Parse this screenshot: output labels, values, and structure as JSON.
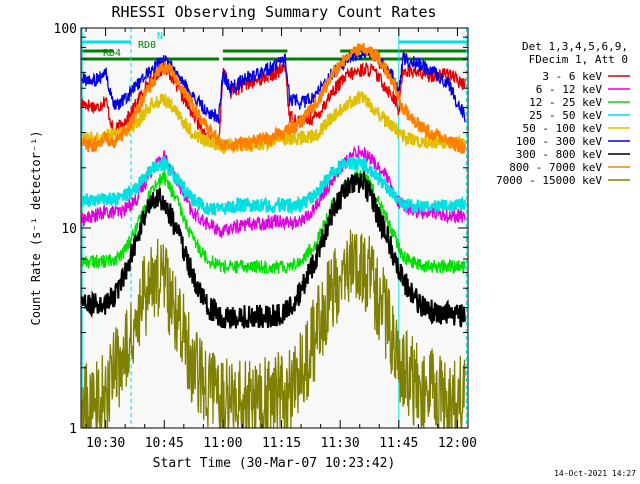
{
  "chart_data": {
    "type": "line",
    "title": "RHESSI Observing Summary Count Rates",
    "xlabel": "Start Time (30-Mar-07 10:23:42)",
    "ylabel": "Count Rate (s⁻¹ detector⁻¹)",
    "yscale": "log",
    "ylim": [
      1,
      100
    ],
    "xlim_minutes": [
      23.7,
      122.7
    ],
    "xticks": [
      {
        "min": 30,
        "label": "10:30"
      },
      {
        "min": 45,
        "label": "10:45"
      },
      {
        "min": 60,
        "label": "11:00"
      },
      {
        "min": 75,
        "label": "11:15"
      },
      {
        "min": 90,
        "label": "11:30"
      },
      {
        "min": 105,
        "label": "11:45"
      },
      {
        "min": 120,
        "label": "12:00"
      }
    ],
    "yticks": [
      {
        "value": 1,
        "label": "1"
      },
      {
        "value": 10,
        "label": "10"
      },
      {
        "value": 100,
        "label": "100"
      }
    ],
    "legend_position": "right",
    "legend_header": [
      "Det 1,3,4,5,6,9,",
      "FDecim 1, Att 0"
    ],
    "series": [
      {
        "name": "3 - 6 keV",
        "color": "#e00000",
        "points": [
          [
            24,
            42
          ],
          [
            28,
            40
          ],
          [
            30,
            44
          ],
          [
            32,
            30
          ],
          [
            36,
            36
          ],
          [
            40,
            50
          ],
          [
            44,
            62
          ],
          [
            46,
            62
          ],
          [
            48,
            52
          ],
          [
            52,
            38
          ],
          [
            56,
            28
          ],
          [
            59,
            26
          ],
          [
            60,
            62
          ],
          [
            62,
            48
          ],
          [
            66,
            52
          ],
          [
            70,
            56
          ],
          [
            74,
            60
          ],
          [
            76,
            64
          ],
          [
            77,
            36
          ],
          [
            80,
            34
          ],
          [
            84,
            36
          ],
          [
            88,
            48
          ],
          [
            92,
            58
          ],
          [
            96,
            62
          ],
          [
            98,
            62
          ],
          [
            100,
            56
          ],
          [
            104,
            44
          ],
          [
            105,
            38
          ],
          [
            106,
            62
          ],
          [
            110,
            60
          ],
          [
            112,
            58
          ],
          [
            116,
            58
          ],
          [
            118,
            60
          ],
          [
            120,
            54
          ],
          [
            122,
            52
          ]
        ]
      },
      {
        "name": "6 - 12 keV",
        "color": "#e000e0",
        "points": [
          [
            24,
            11
          ],
          [
            30,
            12
          ],
          [
            34,
            12
          ],
          [
            38,
            14
          ],
          [
            42,
            20
          ],
          [
            45,
            23
          ],
          [
            48,
            18
          ],
          [
            52,
            12
          ],
          [
            56,
            10.5
          ],
          [
            60,
            9.5
          ],
          [
            62,
            10
          ],
          [
            66,
            10.5
          ],
          [
            70,
            10.5
          ],
          [
            74,
            11
          ],
          [
            78,
            10.5
          ],
          [
            82,
            11.5
          ],
          [
            86,
            15
          ],
          [
            90,
            20
          ],
          [
            94,
            24
          ],
          [
            96,
            24
          ],
          [
            98,
            22
          ],
          [
            102,
            18
          ],
          [
            104,
            14
          ],
          [
            106,
            13
          ],
          [
            110,
            12
          ],
          [
            114,
            12
          ],
          [
            118,
            11.5
          ],
          [
            122,
            11.5
          ]
        ]
      },
      {
        "name": "12 - 25 keV",
        "color": "#00e000",
        "points": [
          [
            24,
            6.8
          ],
          [
            30,
            6.8
          ],
          [
            34,
            7.2
          ],
          [
            38,
            10
          ],
          [
            42,
            16
          ],
          [
            45,
            18
          ],
          [
            48,
            14
          ],
          [
            52,
            9
          ],
          [
            56,
            7
          ],
          [
            60,
            6.4
          ],
          [
            64,
            6.4
          ],
          [
            68,
            6.4
          ],
          [
            72,
            6.4
          ],
          [
            76,
            6.4
          ],
          [
            80,
            6.8
          ],
          [
            84,
            8.5
          ],
          [
            88,
            13
          ],
          [
            92,
            17
          ],
          [
            94,
            18
          ],
          [
            96,
            18
          ],
          [
            98,
            16
          ],
          [
            102,
            11
          ],
          [
            106,
            7.2
          ],
          [
            110,
            6.5
          ],
          [
            114,
            6.4
          ],
          [
            118,
            6.4
          ],
          [
            122,
            6.4
          ]
        ]
      },
      {
        "name": "25 - 50 keV",
        "color": "#00e0e0",
        "points": [
          [
            24,
            13.5
          ],
          [
            30,
            14
          ],
          [
            34,
            14
          ],
          [
            38,
            16
          ],
          [
            42,
            20
          ],
          [
            45,
            21
          ],
          [
            48,
            18
          ],
          [
            52,
            14
          ],
          [
            56,
            12.5
          ],
          [
            60,
            12.5
          ],
          [
            64,
            13
          ],
          [
            68,
            13
          ],
          [
            72,
            13
          ],
          [
            76,
            13
          ],
          [
            80,
            13
          ],
          [
            84,
            15
          ],
          [
            88,
            19
          ],
          [
            92,
            21
          ],
          [
            94,
            21
          ],
          [
            96,
            21
          ],
          [
            98,
            19
          ],
          [
            102,
            16
          ],
          [
            106,
            13
          ],
          [
            110,
            13
          ],
          [
            114,
            13
          ],
          [
            118,
            13
          ],
          [
            122,
            13
          ]
        ]
      },
      {
        "name": "50 - 100 keV",
        "color": "#e0c000",
        "points": [
          [
            24,
            28
          ],
          [
            28,
            28
          ],
          [
            30,
            29
          ],
          [
            34,
            30
          ],
          [
            38,
            34
          ],
          [
            42,
            42
          ],
          [
            45,
            44
          ],
          [
            48,
            38
          ],
          [
            52,
            30
          ],
          [
            56,
            27
          ],
          [
            60,
            26
          ],
          [
            64,
            26
          ],
          [
            68,
            26
          ],
          [
            72,
            27
          ],
          [
            76,
            28
          ],
          [
            80,
            28
          ],
          [
            84,
            29
          ],
          [
            88,
            36
          ],
          [
            92,
            42
          ],
          [
            94,
            44
          ],
          [
            96,
            44
          ],
          [
            98,
            40
          ],
          [
            102,
            34
          ],
          [
            106,
            29
          ],
          [
            110,
            27
          ],
          [
            114,
            27
          ],
          [
            118,
            27
          ],
          [
            122,
            26
          ]
        ]
      },
      {
        "name": "100 - 300 keV",
        "color": "#0000e0",
        "points": [
          [
            24,
            55
          ],
          [
            28,
            55
          ],
          [
            30,
            60
          ],
          [
            32,
            40
          ],
          [
            36,
            46
          ],
          [
            40,
            58
          ],
          [
            44,
            68
          ],
          [
            46,
            68
          ],
          [
            48,
            60
          ],
          [
            52,
            46
          ],
          [
            56,
            38
          ],
          [
            59,
            36
          ],
          [
            60,
            58
          ],
          [
            62,
            50
          ],
          [
            66,
            56
          ],
          [
            70,
            60
          ],
          [
            74,
            66
          ],
          [
            76,
            70
          ],
          [
            77,
            44
          ],
          [
            80,
            42
          ],
          [
            84,
            46
          ],
          [
            88,
            60
          ],
          [
            92,
            70
          ],
          [
            94,
            74
          ],
          [
            96,
            76
          ],
          [
            98,
            74
          ],
          [
            100,
            68
          ],
          [
            104,
            56
          ],
          [
            105,
            46
          ],
          [
            106,
            70
          ],
          [
            110,
            66
          ],
          [
            114,
            60
          ],
          [
            118,
            52
          ],
          [
            120,
            42
          ],
          [
            122,
            36
          ]
        ]
      },
      {
        "name": "300 - 800 keV",
        "color": "#000000",
        "points": [
          [
            24,
            4.2
          ],
          [
            28,
            4.1
          ],
          [
            30,
            4.1
          ],
          [
            34,
            5.2
          ],
          [
            38,
            9
          ],
          [
            41,
            13
          ],
          [
            43,
            14.5
          ],
          [
            45,
            13.5
          ],
          [
            48,
            10
          ],
          [
            52,
            6
          ],
          [
            56,
            4
          ],
          [
            60,
            3.6
          ],
          [
            64,
            3.6
          ],
          [
            68,
            3.6
          ],
          [
            72,
            3.6
          ],
          [
            76,
            3.8
          ],
          [
            80,
            4.8
          ],
          [
            84,
            7.2
          ],
          [
            88,
            12
          ],
          [
            92,
            16
          ],
          [
            94,
            17
          ],
          [
            96,
            17
          ],
          [
            98,
            14
          ],
          [
            102,
            9
          ],
          [
            106,
            5.5
          ],
          [
            110,
            4.2
          ],
          [
            114,
            3.8
          ],
          [
            118,
            3.7
          ],
          [
            122,
            3.6
          ]
        ]
      },
      {
        "name": "800 - 7000 keV",
        "color": "#ff8000",
        "points": [
          [
            24,
            26
          ],
          [
            28,
            26
          ],
          [
            30,
            28
          ],
          [
            32,
            26
          ],
          [
            36,
            32
          ],
          [
            40,
            46
          ],
          [
            44,
            62
          ],
          [
            46,
            64
          ],
          [
            48,
            56
          ],
          [
            52,
            42
          ],
          [
            56,
            31
          ],
          [
            59,
            27
          ],
          [
            60,
            26
          ],
          [
            64,
            26
          ],
          [
            68,
            27
          ],
          [
            72,
            28
          ],
          [
            76,
            30
          ],
          [
            80,
            34
          ],
          [
            84,
            42
          ],
          [
            88,
            58
          ],
          [
            92,
            72
          ],
          [
            94,
            78
          ],
          [
            96,
            80
          ],
          [
            98,
            76
          ],
          [
            100,
            70
          ],
          [
            104,
            52
          ],
          [
            106,
            40
          ],
          [
            110,
            33
          ],
          [
            114,
            29
          ],
          [
            118,
            27
          ],
          [
            122,
            25
          ]
        ]
      },
      {
        "name": "7000 - 15000 keV",
        "color": "#808000",
        "points": [
          [
            24,
            1.3
          ],
          [
            28,
            1.3
          ],
          [
            30,
            1.5
          ],
          [
            34,
            2.2
          ],
          [
            38,
            3.5
          ],
          [
            41,
            5.2
          ],
          [
            43,
            6
          ],
          [
            45,
            5.2
          ],
          [
            48,
            3.6
          ],
          [
            52,
            2.2
          ],
          [
            56,
            1.6
          ],
          [
            60,
            1.4
          ],
          [
            64,
            1.4
          ],
          [
            68,
            1.3
          ],
          [
            72,
            1.4
          ],
          [
            76,
            1.5
          ],
          [
            80,
            1.9
          ],
          [
            84,
            3
          ],
          [
            88,
            5
          ],
          [
            92,
            6.5
          ],
          [
            94,
            7
          ],
          [
            96,
            6.5
          ],
          [
            98,
            5.5
          ],
          [
            102,
            3.5
          ],
          [
            106,
            2
          ],
          [
            110,
            1.6
          ],
          [
            114,
            1.5
          ],
          [
            118,
            1.4
          ],
          [
            122,
            1.4
          ]
        ]
      }
    ],
    "flags": [
      {
        "label": "N",
        "color": "#00e0e0",
        "segments": [
          [
            24,
            36.5
          ],
          [
            105,
            122.7
          ]
        ]
      },
      {
        "label": "RD0",
        "color": "#008000",
        "segments": [
          [
            24,
            32
          ],
          [
            60,
            76.5
          ],
          [
            90,
            107
          ],
          [
            107,
            122.7
          ]
        ]
      },
      {
        "label": "RD4",
        "color": "#008000",
        "segments": [
          [
            24,
            59
          ],
          [
            60,
            79
          ],
          [
            79,
            122.7
          ]
        ]
      }
    ],
    "vertical_markers": [
      {
        "min": 24,
        "color": "#00e0e0",
        "style": "solid"
      },
      {
        "min": 36.5,
        "color": "#00e0e0",
        "style": "dashed"
      },
      {
        "min": 105,
        "color": "#00e0e0",
        "style": "solid"
      },
      {
        "min": 122.3,
        "color": "#00e0e0",
        "style": "dashed"
      }
    ]
  },
  "footer_date": "14-Oct-2021 14:27"
}
